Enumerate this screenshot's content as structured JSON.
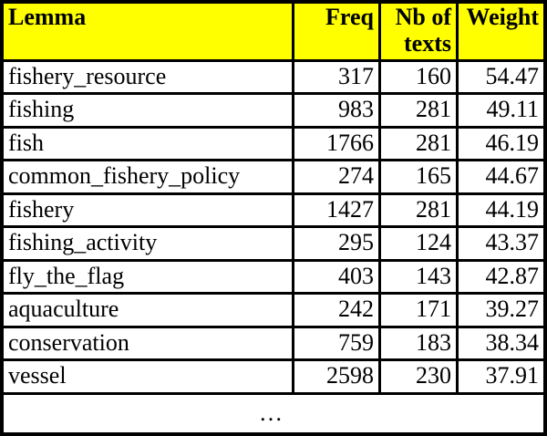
{
  "table": {
    "columns": [
      {
        "label": "Lemma",
        "align": "left"
      },
      {
        "label": "Freq",
        "align": "right"
      },
      {
        "label": "Nb of texts",
        "align": "right"
      },
      {
        "label": "Weight",
        "align": "right"
      }
    ],
    "rows": [
      {
        "lemma": "fishery_resource",
        "freq": "317",
        "nb_texts": "160",
        "weight": "54.47"
      },
      {
        "lemma": "fishing",
        "freq": "983",
        "nb_texts": "281",
        "weight": "49.11"
      },
      {
        "lemma": "fish",
        "freq": "1766",
        "nb_texts": "281",
        "weight": "46.19"
      },
      {
        "lemma": "common_fishery_policy",
        "freq": "274",
        "nb_texts": "165",
        "weight": "44.67"
      },
      {
        "lemma": "fishery",
        "freq": "1427",
        "nb_texts": "281",
        "weight": "44.19"
      },
      {
        "lemma": "fishing_activity",
        "freq": "295",
        "nb_texts": "124",
        "weight": "43.37"
      },
      {
        "lemma": "fly_the_flag",
        "freq": "403",
        "nb_texts": "143",
        "weight": "42.87"
      },
      {
        "lemma": "aquaculture",
        "freq": "242",
        "nb_texts": "171",
        "weight": "39.27"
      },
      {
        "lemma": "conservation",
        "freq": "759",
        "nb_texts": "183",
        "weight": "38.34"
      },
      {
        "lemma": "vessel",
        "freq": "2598",
        "nb_texts": "230",
        "weight": "37.91"
      }
    ],
    "ellipsis": "…"
  },
  "colors": {
    "header_bg": "#ffff00",
    "border": "#000000",
    "row_bg": "#ffffff",
    "text": "#000000"
  }
}
